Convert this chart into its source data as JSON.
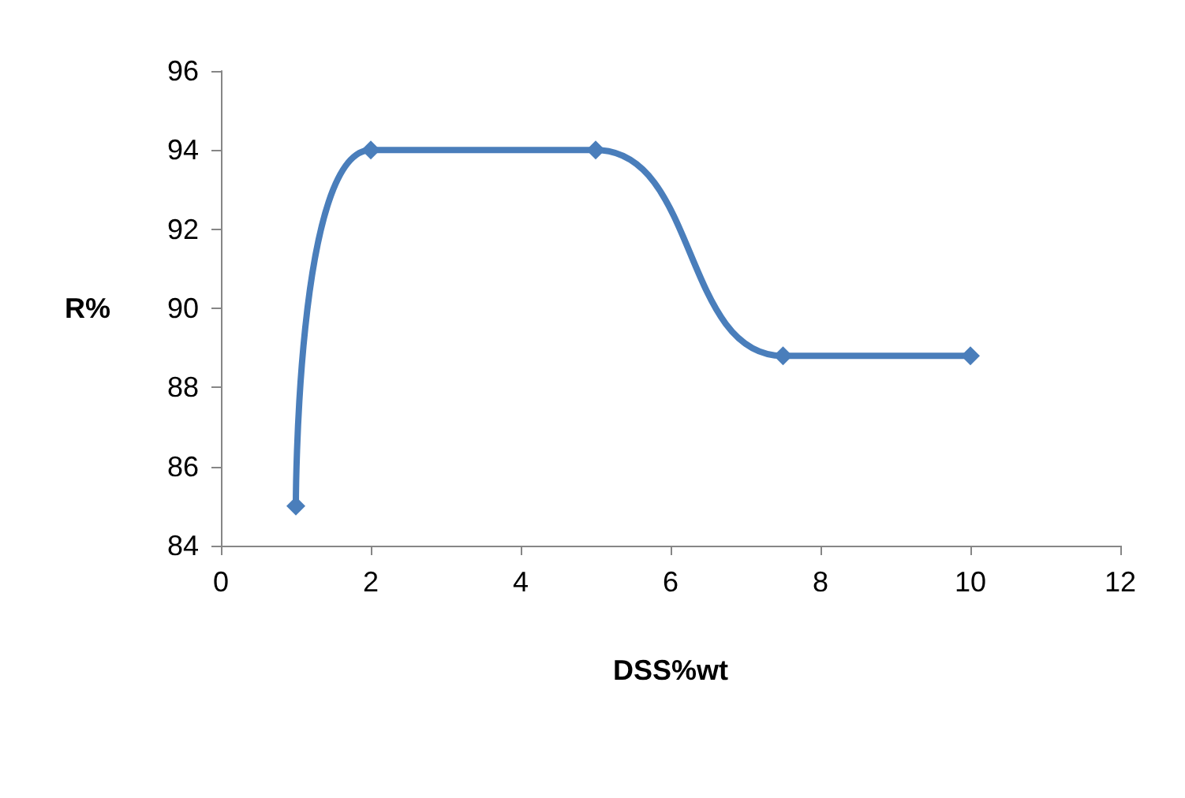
{
  "chart_data": {
    "type": "line",
    "xlabel": "DSS%wt",
    "ylabel": "R%",
    "x": [
      1,
      2,
      5,
      7.5,
      10
    ],
    "series": [
      {
        "color": "#4a7ebb",
        "values": [
          85,
          94,
          94,
          88.8,
          88.8
        ]
      }
    ],
    "xlim": [
      0,
      12
    ],
    "xticks": [
      0,
      2,
      4,
      6,
      8,
      10,
      12
    ],
    "ylim": [
      84,
      96
    ],
    "yticks": [
      84,
      86,
      88,
      90,
      92,
      94,
      96
    ],
    "grid": false,
    "marker": "diamond",
    "line_style": "solid"
  }
}
